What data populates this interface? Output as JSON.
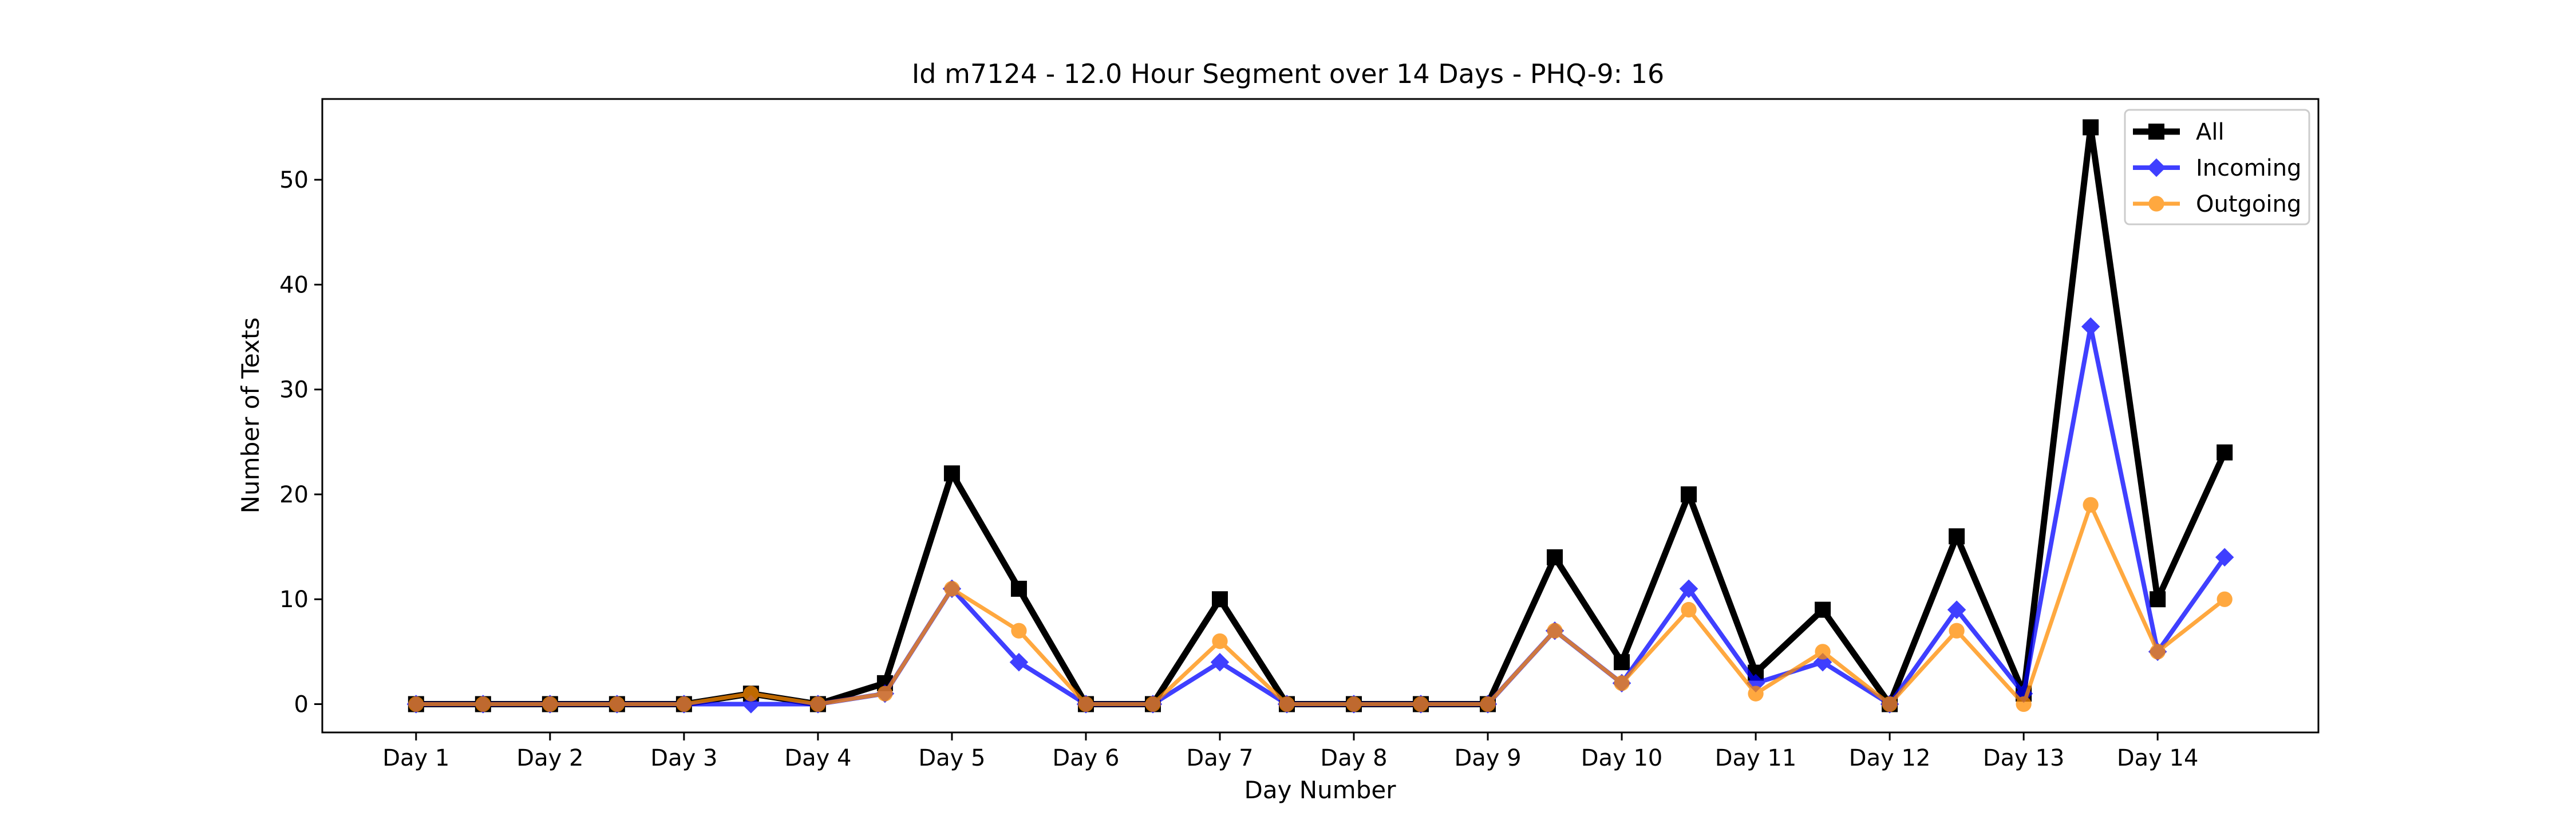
{
  "chart_data": {
    "type": "line",
    "title": "Id m7124 - 12.0 Hour Segment over 14 Days - PHQ-9: 16",
    "xlabel": "Day Number",
    "ylabel": "Number of Texts",
    "x": [
      1,
      1.5,
      2,
      2.5,
      3,
      3.5,
      4,
      4.5,
      5,
      5.5,
      6,
      6.5,
      7,
      7.5,
      8,
      8.5,
      9,
      9.5,
      10,
      10.5,
      11,
      11.5,
      12,
      12.5,
      13,
      13.5,
      14,
      14.5
    ],
    "x_ticks": [
      1,
      2,
      3,
      4,
      5,
      6,
      7,
      8,
      9,
      10,
      11,
      12,
      13,
      14
    ],
    "x_tick_labels": [
      "Day 1",
      "Day 2",
      "Day 3",
      "Day 4",
      "Day 5",
      "Day 6",
      "Day 7",
      "Day 8",
      "Day 9",
      "Day 10",
      "Day 11",
      "Day 12",
      "Day 13",
      "Day 14"
    ],
    "xlim": [
      0.3,
      15.2
    ],
    "ylim": [
      -2.7,
      57.7
    ],
    "y_ticks": [
      0,
      10,
      20,
      30,
      40,
      50
    ],
    "grid": false,
    "legend_position": "top-right",
    "series": [
      {
        "name": "All",
        "color": "#000000",
        "marker": "square",
        "values": [
          0,
          0,
          0,
          0,
          0,
          1,
          0,
          2,
          22,
          11,
          0,
          0,
          10,
          0,
          0,
          0,
          0,
          14,
          4,
          20,
          3,
          9,
          0,
          16,
          1,
          55,
          10,
          24
        ]
      },
      {
        "name": "Incoming",
        "color": "#0000ff",
        "marker": "diamond",
        "values": [
          0,
          0,
          0,
          0,
          0,
          0,
          0,
          1,
          11,
          4,
          0,
          0,
          4,
          0,
          0,
          0,
          0,
          7,
          2,
          11,
          2,
          4,
          0,
          9,
          1,
          36,
          5,
          14
        ]
      },
      {
        "name": "Outgoing",
        "color": "#ff8c00",
        "marker": "circle",
        "values": [
          0,
          0,
          0,
          0,
          0,
          1,
          0,
          1,
          11,
          7,
          0,
          0,
          6,
          0,
          0,
          0,
          0,
          7,
          2,
          9,
          1,
          5,
          0,
          7,
          0,
          19,
          5,
          10
        ]
      }
    ]
  }
}
